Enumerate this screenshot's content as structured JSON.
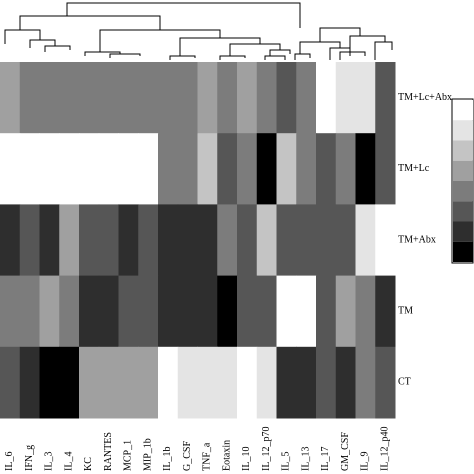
{
  "chart_data": {
    "type": "heatmap",
    "categories": [
      "IL_6",
      "IFN_g",
      "IL_3",
      "IL_4",
      "KC",
      "RANTES",
      "MCP_1",
      "MIP_1b",
      "IL_1b",
      "G_CSF",
      "TNF_a",
      "Eotaxin",
      "IL_10",
      "IL_12_p70",
      "IL_5",
      "IL_13",
      "IL_17",
      "GM_CSF",
      "IL_9",
      "IL_12_p40"
    ],
    "rows": [
      "TM+Lc+Abx",
      "TM+Lc",
      "TM+Abx",
      "TM",
      "CT"
    ],
    "values": [
      [
        3,
        4,
        4,
        4,
        4,
        4,
        4,
        4,
        4,
        4,
        3,
        4,
        3,
        4,
        5,
        4,
        0,
        1,
        1,
        5
      ],
      [
        0,
        0,
        0,
        0,
        0,
        0,
        0,
        0,
        4,
        4,
        2,
        5,
        4,
        7,
        2,
        4,
        5,
        4,
        7,
        5
      ],
      [
        6,
        5,
        6,
        3,
        5,
        5,
        6,
        5,
        6,
        6,
        6,
        4,
        5,
        2,
        5,
        5,
        5,
        5,
        1,
        0
      ],
      [
        4,
        4,
        3,
        4,
        6,
        6,
        5,
        5,
        6,
        6,
        6,
        7,
        5,
        5,
        0,
        0,
        5,
        3,
        4,
        6
      ],
      [
        5,
        6,
        7,
        7,
        3,
        3,
        3,
        3,
        0,
        1,
        1,
        1,
        0,
        1,
        6,
        6,
        5,
        6,
        4,
        5
      ]
    ],
    "colors": [
      "#ffffff",
      "#e4e4e4",
      "#c4c4c4",
      "#a0a0a0",
      "#7c7c7c",
      "#565656",
      "#2e2e2e",
      "#000000"
    ]
  }
}
